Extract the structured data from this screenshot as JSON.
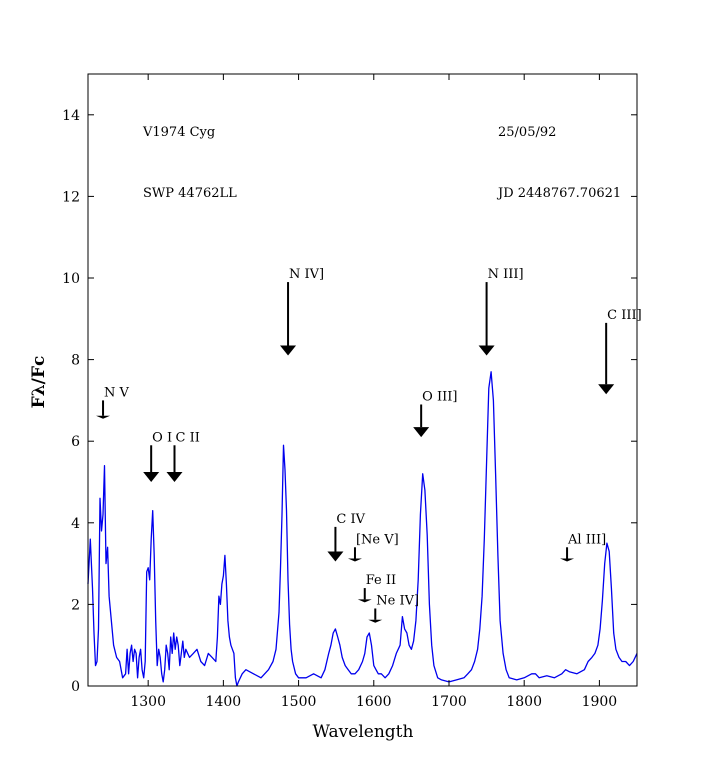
{
  "chart_data": {
    "type": "line",
    "title": "",
    "xlabel": "Wavelength",
    "ylabel": "Fλ/Fc",
    "xlim": [
      1220,
      1950
    ],
    "ylim": [
      0,
      15
    ],
    "xticks": [
      1300,
      1400,
      1500,
      1600,
      1700,
      1800,
      1900
    ],
    "yticks": [
      0,
      2,
      4,
      6,
      8,
      10,
      12,
      14
    ],
    "grid": false,
    "line_color": "#0000ee",
    "info_labels": {
      "object": "V1974 Cyg",
      "date": "25/05/92",
      "spectrum": "SWP 44762LL",
      "jd": "JD 2448767.70621"
    },
    "annotations": [
      {
        "label": "N V",
        "x": 1240,
        "y_arrow_top": 7.0,
        "y_arrow_tip": 6.55
      },
      {
        "label": "O I",
        "x": 1304,
        "y_arrow_top": 5.9,
        "y_arrow_tip": 5.0
      },
      {
        "label": "C II",
        "x": 1335,
        "y_arrow_top": 5.9,
        "y_arrow_tip": 5.0
      },
      {
        "label": "N IV]",
        "x": 1486,
        "y_arrow_top": 9.9,
        "y_arrow_tip": 8.1
      },
      {
        "label": "C IV",
        "x": 1549,
        "y_arrow_top": 3.9,
        "y_arrow_tip": 3.05
      },
      {
        "label": "[Ne V]",
        "x": 1575,
        "y_arrow_top": 3.4,
        "y_arrow_tip": 3.05
      },
      {
        "label": "Fe II",
        "x": 1588,
        "y_arrow_top": 2.4,
        "y_arrow_tip": 2.05
      },
      {
        "label": "Ne IV]",
        "x": 1602,
        "y_arrow_top": 1.9,
        "y_arrow_tip": 1.55
      },
      {
        "label": "O III]",
        "x": 1663,
        "y_arrow_top": 6.9,
        "y_arrow_tip": 6.1
      },
      {
        "label": "N III]",
        "x": 1750,
        "y_arrow_top": 9.9,
        "y_arrow_tip": 8.1
      },
      {
        "label": "Al III]",
        "x": 1857,
        "y_arrow_top": 3.4,
        "y_arrow_tip": 3.05
      },
      {
        "label": "C III]",
        "x": 1909,
        "y_arrow_top": 8.9,
        "y_arrow_tip": 7.15
      }
    ],
    "series": [
      {
        "x": [
          1220,
          1223,
          1226,
          1228,
          1230,
          1232,
          1234,
          1236,
          1238,
          1240,
          1242,
          1244,
          1246,
          1248,
          1250,
          1254,
          1258,
          1262,
          1266,
          1270,
          1272,
          1274,
          1276,
          1278,
          1280,
          1282,
          1284,
          1286,
          1288,
          1290,
          1292,
          1294,
          1296,
          1298,
          1300,
          1302,
          1304,
          1306,
          1308,
          1310,
          1312,
          1314,
          1316,
          1318,
          1320,
          1322,
          1324,
          1326,
          1328,
          1330,
          1332,
          1334,
          1336,
          1338,
          1340,
          1342,
          1344,
          1346,
          1348,
          1350,
          1355,
          1360,
          1365,
          1370,
          1375,
          1380,
          1385,
          1390,
          1392,
          1394,
          1396,
          1398,
          1400,
          1402,
          1404,
          1406,
          1408,
          1410,
          1412,
          1414,
          1416,
          1418,
          1420,
          1425,
          1430,
          1440,
          1450,
          1460,
          1466,
          1470,
          1474,
          1476,
          1478,
          1480,
          1482,
          1484,
          1486,
          1488,
          1490,
          1492,
          1496,
          1500,
          1510,
          1520,
          1530,
          1535,
          1540,
          1543,
          1546,
          1549,
          1552,
          1555,
          1558,
          1562,
          1566,
          1570,
          1575,
          1580,
          1585,
          1588,
          1591,
          1594,
          1597,
          1600,
          1603,
          1606,
          1610,
          1615,
          1620,
          1625,
          1630,
          1635,
          1638,
          1641,
          1644,
          1647,
          1650,
          1653,
          1656,
          1659,
          1662,
          1665,
          1668,
          1671,
          1674,
          1677,
          1680,
          1685,
          1690,
          1700,
          1710,
          1720,
          1725,
          1730,
          1734,
          1738,
          1741,
          1744,
          1747,
          1750,
          1753,
          1756,
          1759,
          1762,
          1765,
          1768,
          1772,
          1776,
          1780,
          1790,
          1800,
          1810,
          1815,
          1820,
          1830,
          1840,
          1850,
          1855,
          1860,
          1870,
          1880,
          1885,
          1890,
          1894,
          1898,
          1901,
          1904,
          1907,
          1910,
          1913,
          1916,
          1919,
          1922,
          1926,
          1930,
          1935,
          1940,
          1945,
          1950
        ],
        "y": [
          2.5,
          3.6,
          2.4,
          1.3,
          0.5,
          0.6,
          1.4,
          4.6,
          3.8,
          4.2,
          5.4,
          3.0,
          3.4,
          2.2,
          1.8,
          1.0,
          0.7,
          0.6,
          0.2,
          0.3,
          0.9,
          0.3,
          0.8,
          1.0,
          0.6,
          0.9,
          0.8,
          0.2,
          0.7,
          0.9,
          0.4,
          0.2,
          0.6,
          2.8,
          2.9,
          2.6,
          3.6,
          4.3,
          3.2,
          1.6,
          0.5,
          0.9,
          0.7,
          0.3,
          0.1,
          0.4,
          1.0,
          0.8,
          0.4,
          1.2,
          0.8,
          1.3,
          0.9,
          1.2,
          1.0,
          0.5,
          0.8,
          1.1,
          0.7,
          0.9,
          0.7,
          0.8,
          0.9,
          0.6,
          0.5,
          0.8,
          0.7,
          0.6,
          1.2,
          2.2,
          2.0,
          2.5,
          2.7,
          3.2,
          2.5,
          1.6,
          1.2,
          1.0,
          0.9,
          0.8,
          0.2,
          0.0,
          0.1,
          0.3,
          0.4,
          0.3,
          0.2,
          0.4,
          0.6,
          0.9,
          1.8,
          2.9,
          4.2,
          5.9,
          5.3,
          4.3,
          2.6,
          1.5,
          0.9,
          0.6,
          0.3,
          0.2,
          0.2,
          0.3,
          0.2,
          0.4,
          0.8,
          1.0,
          1.3,
          1.4,
          1.2,
          1.0,
          0.7,
          0.5,
          0.4,
          0.3,
          0.3,
          0.4,
          0.6,
          0.8,
          1.2,
          1.3,
          1.0,
          0.5,
          0.4,
          0.3,
          0.3,
          0.2,
          0.3,
          0.5,
          0.8,
          1.0,
          1.7,
          1.4,
          1.3,
          1.0,
          0.9,
          1.1,
          1.6,
          2.6,
          4.2,
          5.2,
          4.8,
          3.7,
          2.0,
          1.0,
          0.5,
          0.2,
          0.15,
          0.1,
          0.15,
          0.2,
          0.3,
          0.4,
          0.6,
          0.9,
          1.4,
          2.2,
          3.6,
          5.5,
          7.3,
          7.7,
          7.0,
          5.2,
          3.2,
          1.6,
          0.8,
          0.4,
          0.2,
          0.15,
          0.2,
          0.3,
          0.3,
          0.2,
          0.25,
          0.2,
          0.3,
          0.4,
          0.35,
          0.3,
          0.4,
          0.6,
          0.7,
          0.8,
          1.0,
          1.4,
          2.1,
          3.0,
          3.5,
          3.3,
          2.4,
          1.3,
          0.9,
          0.7,
          0.6,
          0.6,
          0.5,
          0.6,
          0.8
        ]
      }
    ]
  }
}
